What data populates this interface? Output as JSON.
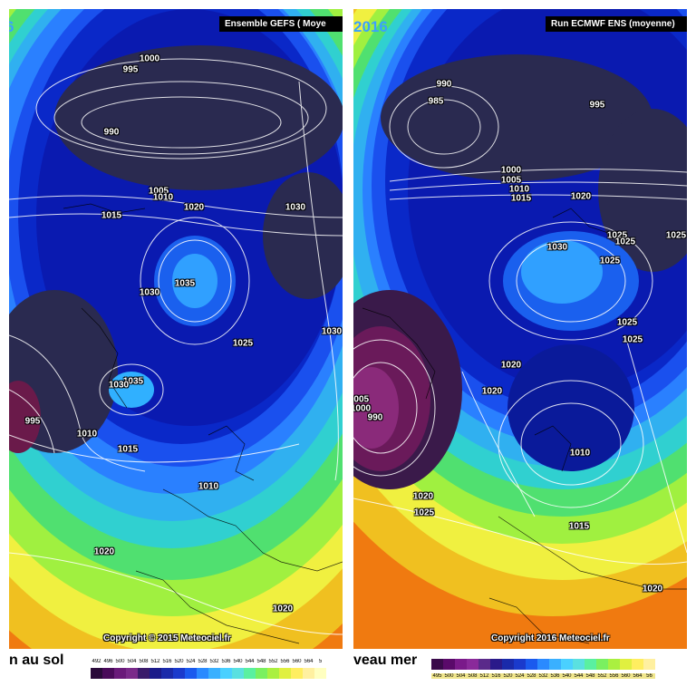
{
  "left_panel": {
    "year_fragment": "6",
    "header": "Ensemble GEFS  ( Moye",
    "copyright": "Copyright © 2015 Meteociel.fr",
    "isobars": [
      "1000",
      "995",
      "990",
      "1005",
      "1010",
      "1015",
      "1020",
      "1030",
      "1035",
      "1030",
      "1030",
      "1025",
      "1035",
      "1030",
      "995",
      "1010",
      "1015",
      "1010",
      "1020",
      "1020"
    ]
  },
  "right_panel": {
    "year": "2016",
    "header": "Run ECMWF ENS (moyenne)",
    "copyright": "Copyright 2016 Meteociel.fr",
    "isobars": [
      "990",
      "985",
      "995",
      "1000",
      "1005",
      "1010",
      "1015",
      "1020",
      "1025",
      "1025",
      "1025",
      "1030",
      "1025",
      "1025",
      "1025",
      "1020",
      "1020",
      "1005",
      "1000",
      "990",
      "1010",
      "1015",
      "1020",
      "1025",
      "1020"
    ]
  },
  "captions": {
    "left": "n au sol",
    "right": "veau mer"
  },
  "scale_left": {
    "values": [
      "492",
      "496",
      "500",
      "504",
      "508",
      "512",
      "516",
      "520",
      "524",
      "528",
      "532",
      "536",
      "540",
      "544",
      "548",
      "552",
      "556",
      "560",
      "564",
      "5"
    ],
    "colors": [
      "#2a0a3a",
      "#4a0a5a",
      "#6a1a7a",
      "#7a2a8a",
      "#3a1a6a",
      "#1a1a8a",
      "#1a2aaa",
      "#1a3acc",
      "#1a5aee",
      "#2a8aff",
      "#3ab0ff",
      "#4ad0ff",
      "#5ae0e0",
      "#5af0a0",
      "#7af060",
      "#aaf040",
      "#e0f040",
      "#ffee60",
      "#fff0a0",
      "#ffffc0"
    ]
  },
  "scale_right": {
    "values": [
      "495",
      "500",
      "504",
      "508",
      "512",
      "516",
      "520",
      "524",
      "528",
      "532",
      "536",
      "540",
      "544",
      "548",
      "552",
      "556",
      "560",
      "564",
      "56"
    ],
    "colors": [
      "#3a0a4a",
      "#5a0a6a",
      "#7a1a8a",
      "#8a2a9a",
      "#5a2a8a",
      "#2a1a8a",
      "#1a2aaa",
      "#1a3acc",
      "#1a5aee",
      "#2a8aff",
      "#3ab0ff",
      "#4ad0ff",
      "#5ae0e0",
      "#5af0a0",
      "#7af060",
      "#aaf040",
      "#e0f040",
      "#ffee60",
      "#fff0a0"
    ]
  },
  "colors": {
    "deep_low": "#2a2a4a",
    "dark_blue": "#0a1ab8",
    "mid_blue": "#1a3ae0",
    "light_blue": "#2a9aff",
    "cyan": "#30d0f0",
    "green": "#50e050",
    "yellow": "#f0f040",
    "orange": "#f0a020",
    "purple": "#6a1a5a"
  }
}
